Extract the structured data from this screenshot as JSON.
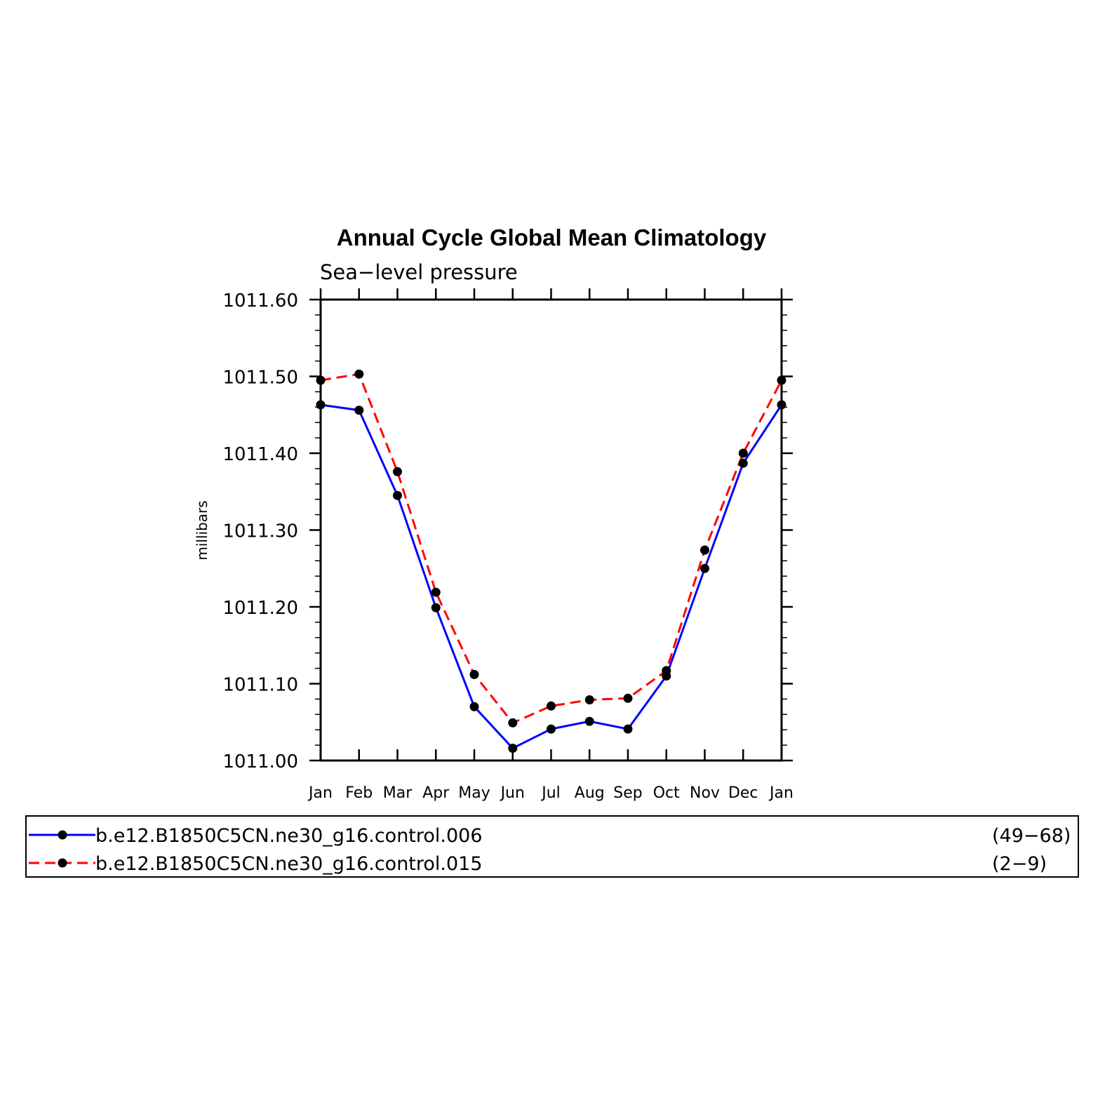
{
  "chart_data": {
    "type": "line",
    "title": "Annual Cycle Global Mean Climatology",
    "subtitle": "Sea−level pressure",
    "xlabel": "",
    "ylabel": "millibars",
    "categories": [
      "Jan",
      "Feb",
      "Mar",
      "Apr",
      "May",
      "Jun",
      "Jul",
      "Aug",
      "Sep",
      "Oct",
      "Nov",
      "Dec",
      "Jan"
    ],
    "ylim": [
      1011.0,
      1011.6
    ],
    "yticks": [
      "1011.00",
      "1011.10",
      "1011.20",
      "1011.30",
      "1011.40",
      "1011.50",
      "1011.60"
    ],
    "grid": false,
    "legend_position": "bottom",
    "series": [
      {
        "name": "b.e12.B1850C5CN.ne30_g16.control.006",
        "years": "(49−68)",
        "color": "#0000ff",
        "line_style": "solid",
        "marker": "filled-circle",
        "values": [
          1011.463,
          1011.456,
          1011.345,
          1011.199,
          1011.07,
          1011.016,
          1011.041,
          1011.051,
          1011.041,
          1011.11,
          1011.25,
          1011.387,
          1011.463
        ]
      },
      {
        "name": "b.e12.B1850C5CN.ne30_g16.control.015",
        "years": "(2−9)",
        "color": "#ff0000",
        "line_style": "dashed",
        "marker": "filled-circle",
        "values": [
          1011.495,
          1011.503,
          1011.376,
          1011.219,
          1011.112,
          1011.049,
          1011.071,
          1011.079,
          1011.081,
          1011.117,
          1011.274,
          1011.4,
          1011.495
        ]
      }
    ]
  }
}
